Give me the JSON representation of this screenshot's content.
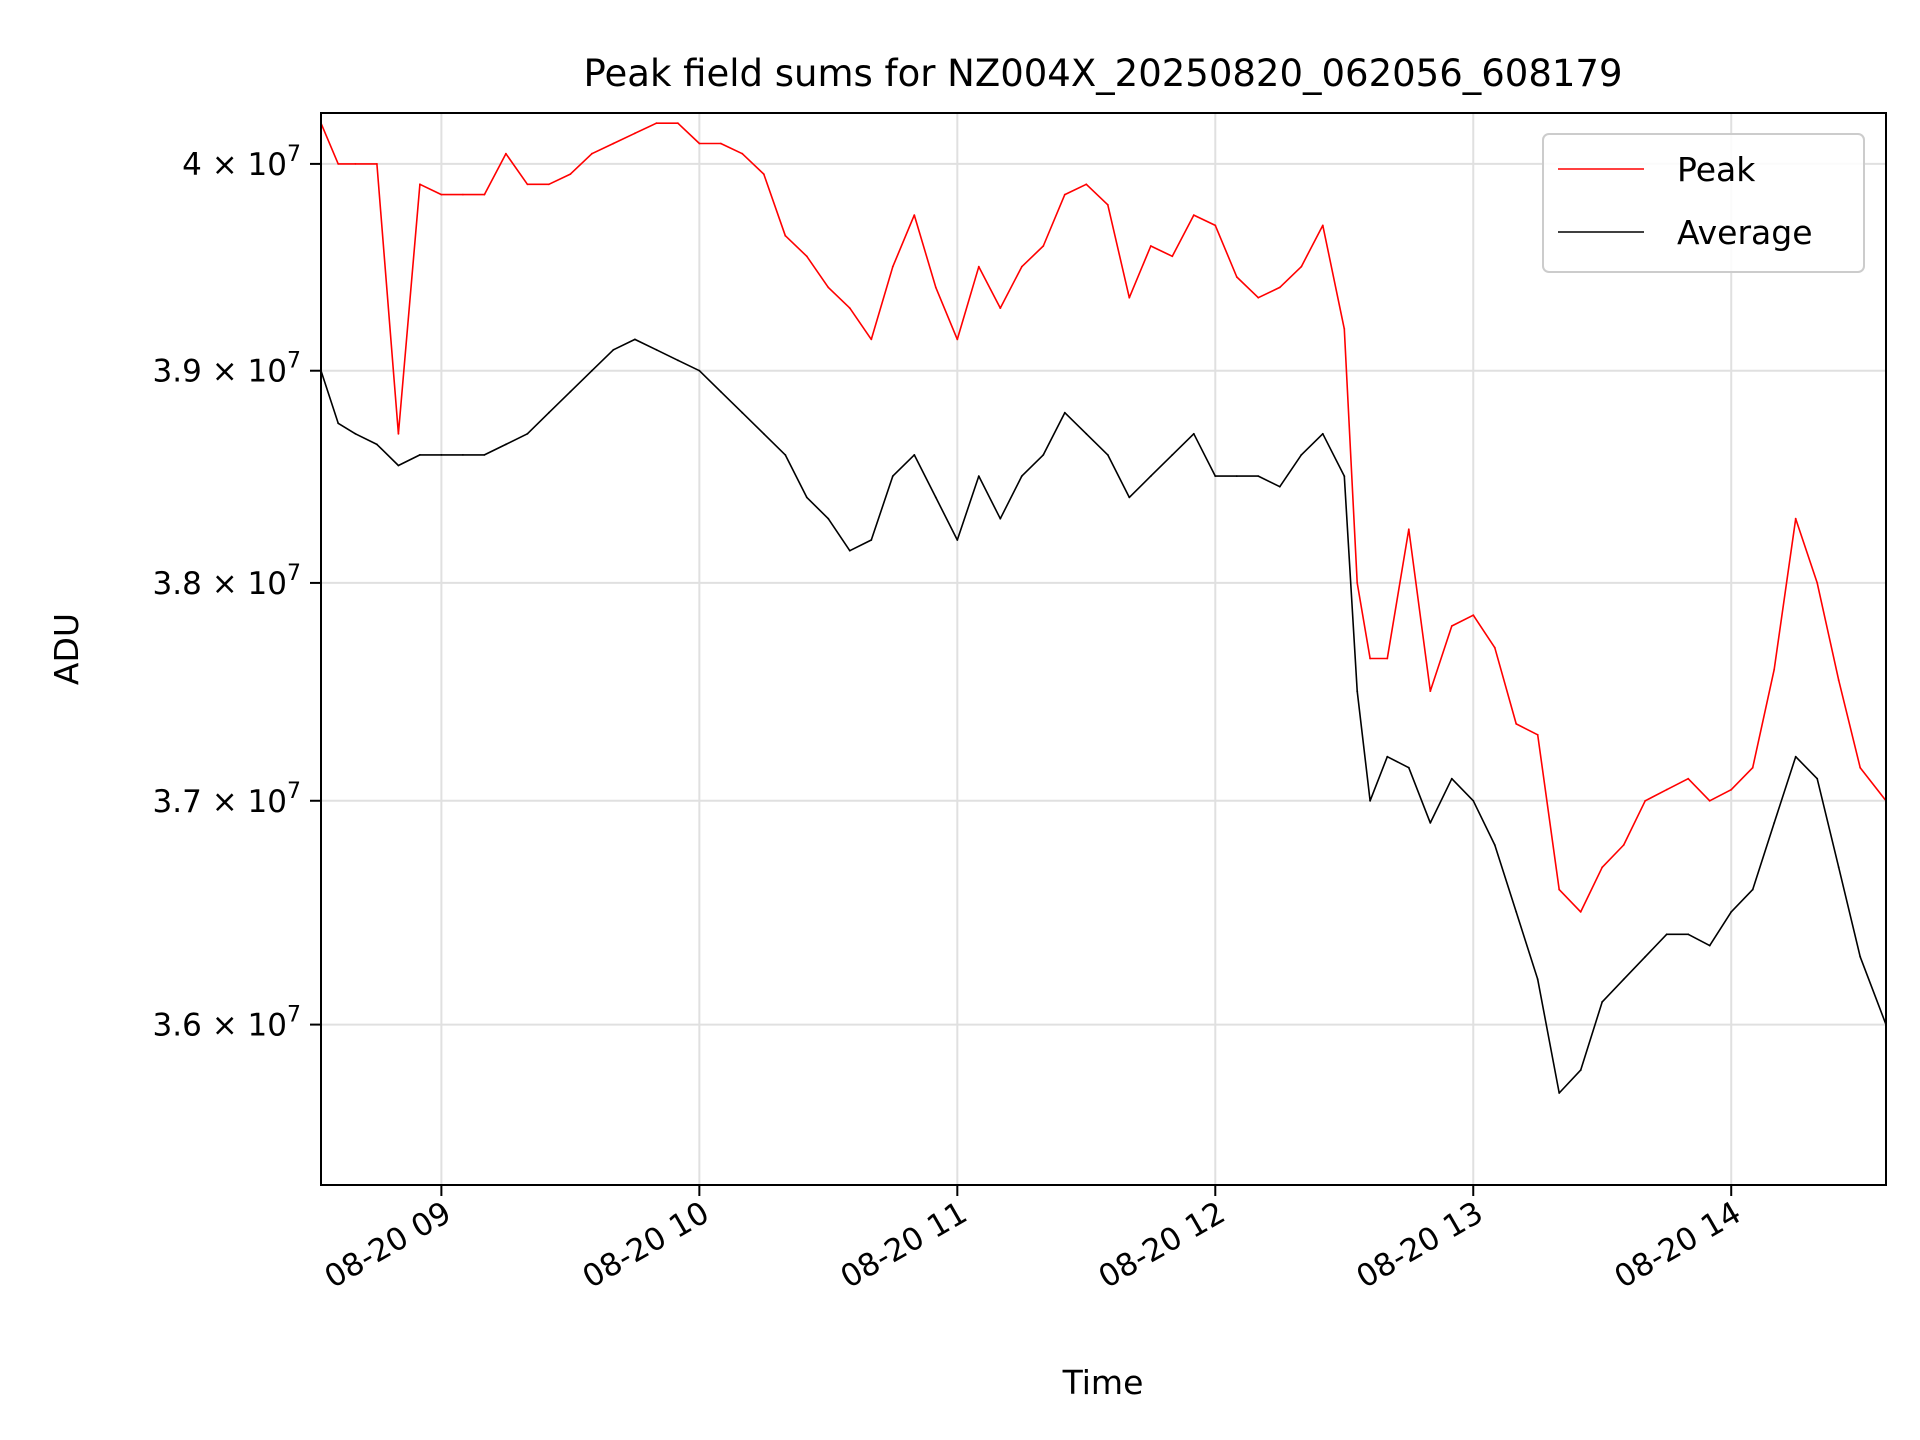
{
  "chart_data": {
    "type": "line",
    "title": "Peak field sums for NZ004X_20250820_062056_608179",
    "xlabel": "Time",
    "ylabel": "ADU",
    "x_ticks": [
      "08-20 09",
      "08-20 10",
      "08-20 11",
      "08-20 12",
      "08-20 13",
      "08-20 14"
    ],
    "y_ticks": [
      {
        "mantissa": "3.6",
        "exponent": "7",
        "value": 36000000
      },
      {
        "mantissa": "3.7",
        "exponent": "7",
        "value": 37000000
      },
      {
        "mantissa": "3.8",
        "exponent": "7",
        "value": 38000000
      },
      {
        "mantissa": "3.9",
        "exponent": "7",
        "value": 39000000
      },
      {
        "mantissa": "4",
        "exponent": "7",
        "value": 40000000
      }
    ],
    "y_log_scale": true,
    "xlim": [
      "2025-08-20 08:32",
      "2025-08-20 14:36"
    ],
    "ylim": [
      35300000,
      40250000
    ],
    "grid": true,
    "legend_position": "upper right",
    "series": [
      {
        "name": "Peak",
        "color": "#ff0000",
        "x": [
          "08:32",
          "08:36",
          "08:40",
          "08:45",
          "08:50",
          "08:55",
          "09:00",
          "09:05",
          "09:10",
          "09:15",
          "09:20",
          "09:25",
          "09:30",
          "09:35",
          "09:40",
          "09:45",
          "09:50",
          "09:55",
          "10:00",
          "10:05",
          "10:10",
          "10:15",
          "10:20",
          "10:25",
          "10:30",
          "10:35",
          "10:40",
          "10:45",
          "10:50",
          "10:55",
          "11:00",
          "11:05",
          "11:10",
          "11:15",
          "11:20",
          "11:25",
          "11:30",
          "11:35",
          "11:40",
          "11:45",
          "11:50",
          "11:55",
          "12:00",
          "12:05",
          "12:10",
          "12:15",
          "12:20",
          "12:25",
          "12:30",
          "12:33",
          "12:36",
          "12:40",
          "12:45",
          "12:50",
          "12:55",
          "13:00",
          "13:05",
          "13:10",
          "13:15",
          "13:20",
          "13:25",
          "13:30",
          "13:35",
          "13:40",
          "13:45",
          "13:50",
          "13:55",
          "14:00",
          "14:05",
          "14:10",
          "14:15",
          "14:20",
          "14:25",
          "14:30",
          "14:36"
        ],
        "values": [
          40200000,
          40000000,
          40000000,
          40000000,
          38700000,
          39900000,
          39850000,
          39850000,
          39850000,
          40050000,
          39900000,
          39900000,
          39950000,
          40050000,
          40100000,
          40150000,
          40200000,
          40200000,
          40100000,
          40100000,
          40050000,
          39950000,
          39650000,
          39550000,
          39400000,
          39300000,
          39150000,
          39500000,
          39750000,
          39400000,
          39150000,
          39500000,
          39300000,
          39500000,
          39600000,
          39850000,
          39900000,
          39800000,
          39350000,
          39600000,
          39550000,
          39750000,
          39700000,
          39450000,
          39350000,
          39400000,
          39500000,
          39700000,
          39200000,
          38000000,
          37650000,
          37650000,
          38250000,
          37500000,
          37800000,
          37850000,
          37700000,
          37350000,
          37300000,
          36600000,
          36500000,
          36700000,
          36800000,
          37000000,
          37050000,
          37100000,
          37000000,
          37050000,
          37150000,
          37600000,
          38300000,
          38000000,
          37550000,
          37150000,
          37000000
        ]
      },
      {
        "name": "Average",
        "color": "#000000",
        "x": [
          "08:32",
          "08:36",
          "08:40",
          "08:45",
          "08:50",
          "08:55",
          "09:00",
          "09:05",
          "09:10",
          "09:15",
          "09:20",
          "09:25",
          "09:30",
          "09:35",
          "09:40",
          "09:45",
          "09:50",
          "09:55",
          "10:00",
          "10:05",
          "10:10",
          "10:15",
          "10:20",
          "10:25",
          "10:30",
          "10:35",
          "10:40",
          "10:45",
          "10:50",
          "10:55",
          "11:00",
          "11:05",
          "11:10",
          "11:15",
          "11:20",
          "11:25",
          "11:30",
          "11:35",
          "11:40",
          "11:45",
          "11:50",
          "11:55",
          "12:00",
          "12:05",
          "12:10",
          "12:15",
          "12:20",
          "12:25",
          "12:30",
          "12:33",
          "12:36",
          "12:40",
          "12:45",
          "12:50",
          "12:55",
          "13:00",
          "13:05",
          "13:10",
          "13:15",
          "13:20",
          "13:25",
          "13:30",
          "13:35",
          "13:40",
          "13:45",
          "13:50",
          "13:55",
          "14:00",
          "14:05",
          "14:10",
          "14:15",
          "14:20",
          "14:25",
          "14:30",
          "14:36"
        ],
        "values": [
          39000000,
          38750000,
          38700000,
          38650000,
          38550000,
          38600000,
          38600000,
          38600000,
          38600000,
          38650000,
          38700000,
          38800000,
          38900000,
          39000000,
          39100000,
          39150000,
          39100000,
          39050000,
          39000000,
          38900000,
          38800000,
          38700000,
          38600000,
          38400000,
          38300000,
          38150000,
          38200000,
          38500000,
          38600000,
          38400000,
          38200000,
          38500000,
          38300000,
          38500000,
          38600000,
          38800000,
          38700000,
          38600000,
          38400000,
          38500000,
          38600000,
          38700000,
          38500000,
          38500000,
          38500000,
          38450000,
          38600000,
          38700000,
          38500000,
          37500000,
          37000000,
          37200000,
          37150000,
          36900000,
          37100000,
          37000000,
          36800000,
          36500000,
          36200000,
          35700000,
          35800000,
          36100000,
          36200000,
          36300000,
          36400000,
          36400000,
          36350000,
          36500000,
          36600000,
          36900000,
          37200000,
          37100000,
          36700000,
          36300000,
          36000000
        ]
      }
    ]
  }
}
